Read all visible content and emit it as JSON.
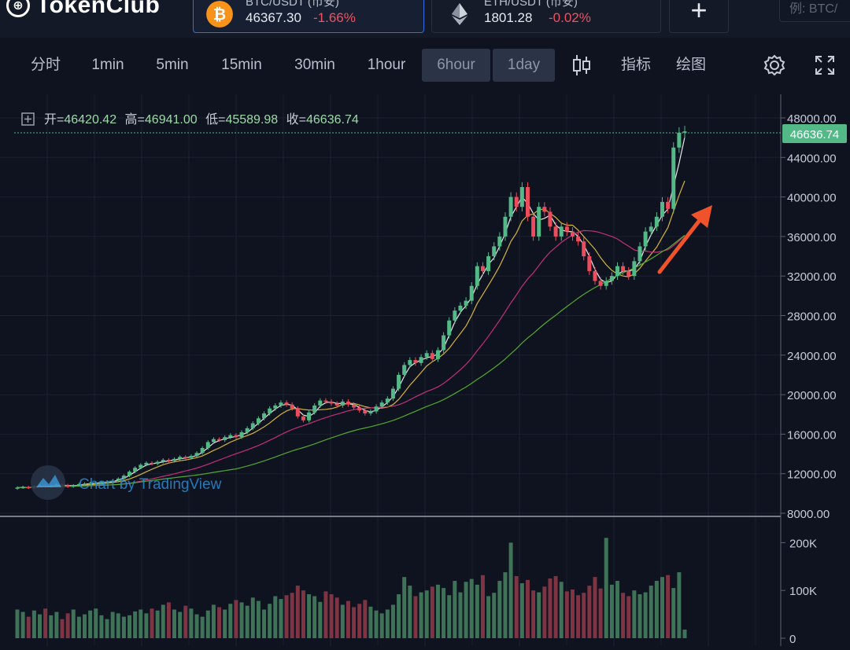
{
  "app": {
    "logo_text": "TokenClub"
  },
  "tickers": [
    {
      "pair": "BTC/USDT (币安)",
      "price": "46367.30",
      "change": "-1.66%",
      "active": true
    },
    {
      "pair": "ETH/USDT (币安)",
      "price": "1801.28",
      "change": "-0.02%",
      "active": false
    }
  ],
  "add_button": "+",
  "search": {
    "placeholder": "例: BTC/"
  },
  "toolbar": {
    "intervals": [
      "分时",
      "1min",
      "5min",
      "15min",
      "30min",
      "1hour",
      "6hour",
      "1day"
    ],
    "selected": [
      "6hour",
      "1day"
    ],
    "indicators_label": "指标",
    "draw_label": "绘图",
    "icons": [
      "candlestick-icon",
      "settings-icon",
      "fullscreen-icon"
    ]
  },
  "ohlc": {
    "open_label": "开=",
    "open": "46420.42",
    "high_label": "高=",
    "high": "46941.00",
    "low_label": "低=",
    "low": "45589.98",
    "close_label": "收=",
    "close": "46636.74"
  },
  "watermark": "Chart by TradingView",
  "price_tag": "46636.74",
  "colors": {
    "up": "#53b987",
    "down": "#eb4d5c",
    "ma_fast": "#e8e8e8",
    "ma_mid": "#d4b43a",
    "ma_slow": "#c2307a",
    "ma_long": "#56a82e",
    "arrow": "#f0532b"
  },
  "chart_data": {
    "type": "candlestick",
    "price_axis": {
      "ticks": [
        "48000.00",
        "44000.00",
        "40000.00",
        "36000.00",
        "32000.00",
        "28000.00",
        "24000.00",
        "20000.00",
        "16000.00",
        "12000.00",
        "8000.00"
      ],
      "ylim": [
        8000,
        48000
      ]
    },
    "volume_axis": {
      "ticks": [
        "200K",
        "100K",
        "0"
      ],
      "ylim": [
        0,
        250000
      ]
    },
    "close_series": [
      10600,
      10650,
      10580,
      10720,
      10800,
      10680,
      10750,
      10900,
      10850,
      10700,
      10820,
      10950,
      11000,
      11050,
      11100,
      11150,
      11200,
      11300,
      11500,
      11800,
      12200,
      12600,
      12900,
      13100,
      13000,
      13200,
      13400,
      13300,
      13500,
      13700,
      13600,
      13800,
      14100,
      14600,
      15200,
      15500,
      15400,
      15700,
      15900,
      15700,
      16200,
      16600,
      17100,
      17600,
      18100,
      18600,
      18900,
      19200,
      19000,
      18600,
      17800,
      17400,
      18200,
      18900,
      19400,
      19300,
      19100,
      18900,
      19300,
      19000,
      18700,
      18400,
      18100,
      18300,
      18800,
      19200,
      19600,
      20600,
      22000,
      23000,
      23500,
      23200,
      23800,
      24200,
      23600,
      24500,
      26000,
      27500,
      28500,
      29000,
      29500,
      31000,
      33000,
      32500,
      34000,
      35000,
      36000,
      38000,
      40000,
      39000,
      41000,
      38000,
      36000,
      39000,
      38500,
      37000,
      36000,
      37000,
      36500,
      36000,
      35500,
      34000,
      32500,
      31500,
      31000,
      31500,
      32000,
      33000,
      32500,
      32000,
      33500,
      35000,
      36500,
      37000,
      38000,
      39500,
      38800,
      45000,
      46500,
      46636.74
    ],
    "volume_series": [
      60,
      55,
      45,
      58,
      50,
      62,
      48,
      55,
      40,
      52,
      60,
      45,
      50,
      58,
      62,
      48,
      40,
      55,
      52,
      45,
      48,
      56,
      60,
      52,
      62,
      58,
      70,
      75,
      60,
      55,
      68,
      62,
      50,
      45,
      58,
      70,
      65,
      60,
      72,
      80,
      75,
      68,
      85,
      78,
      60,
      72,
      88,
      82,
      90,
      95,
      110,
      100,
      92,
      88,
      76,
      98,
      92,
      85,
      70,
      78,
      65,
      72,
      80,
      66,
      58,
      52,
      60,
      70,
      92,
      128,
      110,
      88,
      96,
      100,
      108,
      112,
      105,
      90,
      120,
      96,
      118,
      124,
      112,
      132,
      88,
      95,
      120,
      138,
      200,
      130,
      115,
      122,
      100,
      96,
      108,
      125,
      130,
      118,
      98,
      102,
      90,
      95,
      110,
      128,
      104,
      210,
      112,
      120,
      95,
      88,
      100,
      92,
      96,
      110,
      120,
      128,
      132,
      105,
      138,
      18
    ]
  }
}
